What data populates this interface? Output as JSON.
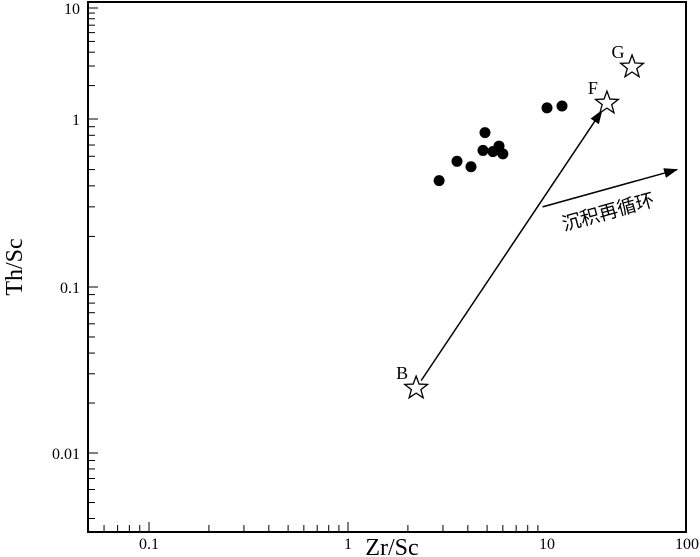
{
  "chart_data": {
    "type": "scatter",
    "xlabel": "Zr/Sc",
    "ylabel": "Th/Sc",
    "xscale": "log",
    "yscale": "log",
    "xlim": [
      0.05,
      100
    ],
    "ylim": [
      0.0033,
      10
    ],
    "xticks": [
      "0.1",
      "1",
      "10",
      "100"
    ],
    "yticks": [
      "0.01",
      "0.1",
      "1",
      "10"
    ],
    "points": [
      {
        "x": 2.87,
        "y": 0.43
      },
      {
        "x": 3.53,
        "y": 0.56
      },
      {
        "x": 4.15,
        "y": 0.52
      },
      {
        "x": 4.88,
        "y": 0.83
      },
      {
        "x": 4.77,
        "y": 0.65
      },
      {
        "x": 5.35,
        "y": 0.64
      },
      {
        "x": 5.74,
        "y": 0.69
      },
      {
        "x": 6.0,
        "y": 0.62
      },
      {
        "x": 10.0,
        "y": 1.26
      },
      {
        "x": 12.8,
        "y": 1.31
      }
    ],
    "references": [
      {
        "label": "B",
        "x": 2.2,
        "y": 0.0246
      },
      {
        "label": "F",
        "x": 26.8,
        "y": 1.39
      },
      {
        "label": "G",
        "x": 40.5,
        "y": 2.94
      }
    ],
    "annotations": [
      {
        "type": "arrow",
        "from": "B",
        "to": "F"
      },
      {
        "type": "arrow",
        "from": [
          9.5,
          0.3
        ],
        "to": [
          85,
          0.5
        ],
        "label": "沉积再循环"
      }
    ],
    "grid": false,
    "legend": "none"
  }
}
